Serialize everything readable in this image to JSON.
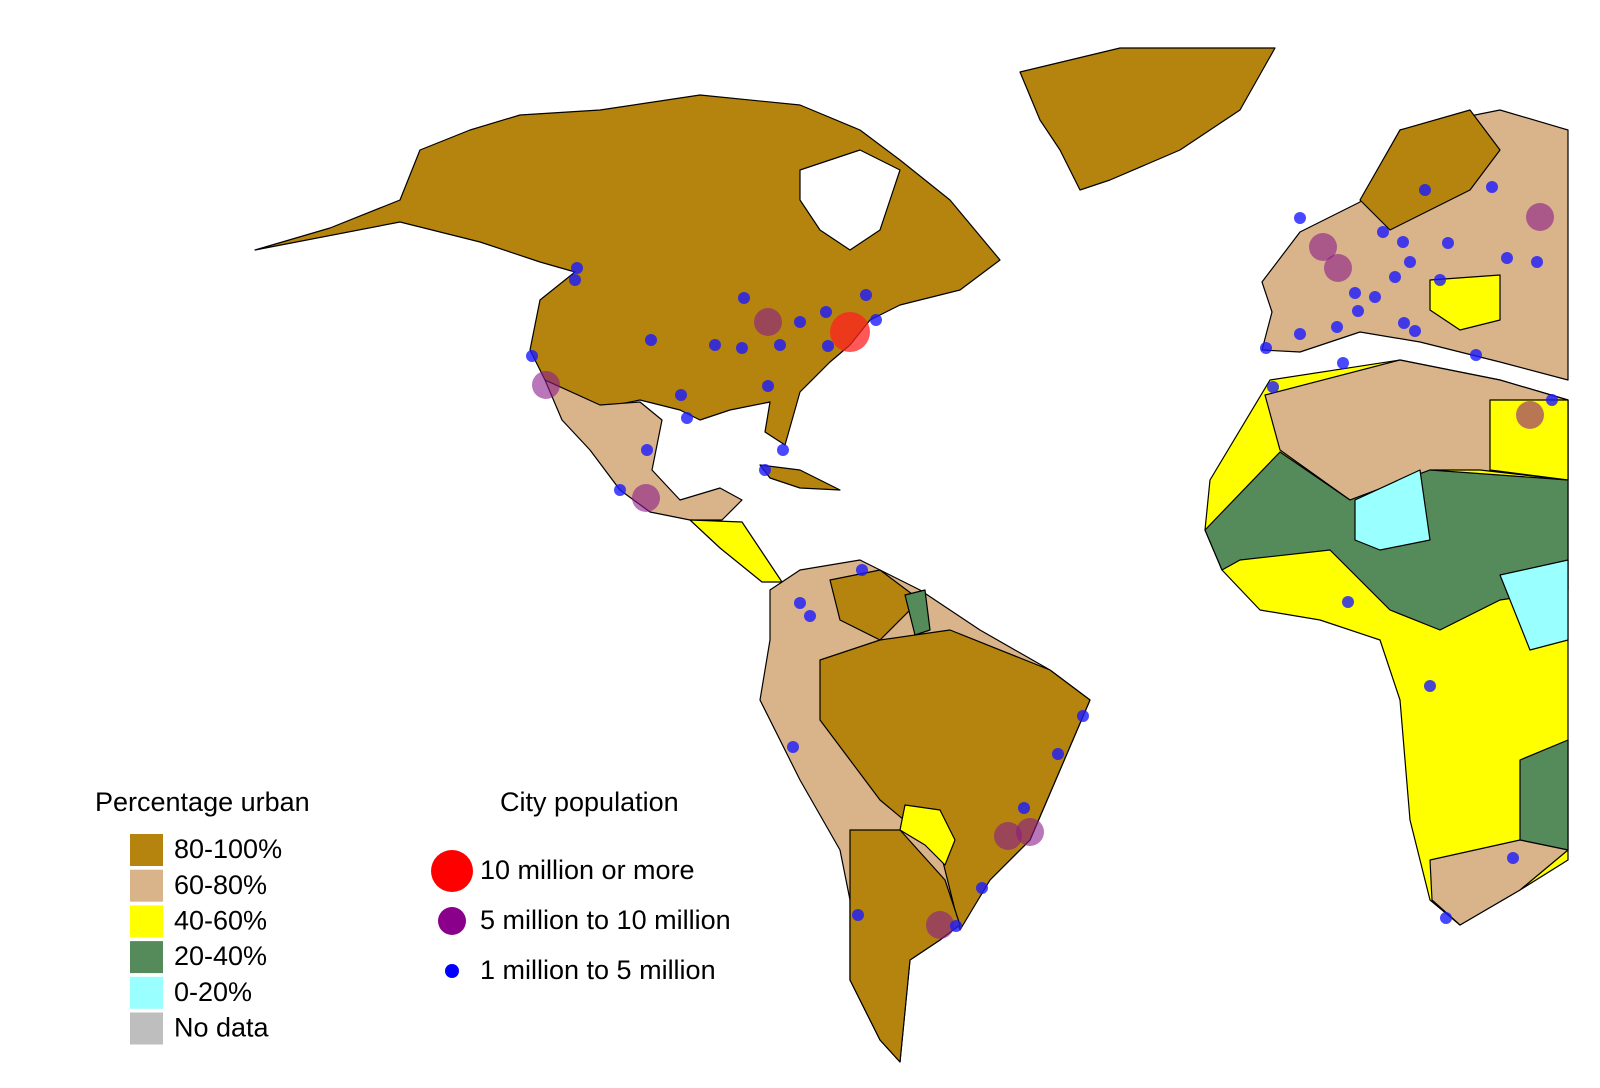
{
  "legends": {
    "urban": {
      "title": "Percentage urban",
      "items": [
        {
          "label": "80-100%",
          "color": "#b5840e"
        },
        {
          "label": "60-80%",
          "color": "#d9b48a"
        },
        {
          "label": "40-60%",
          "color": "#ffff00"
        },
        {
          "label": "20-40%",
          "color": "#558b5a"
        },
        {
          "label": "0-20%",
          "color": "#99ffff"
        },
        {
          "label": "No data",
          "color": "#bebebe"
        }
      ]
    },
    "city": {
      "title": "City population",
      "items": [
        {
          "label": "10 million or more",
          "color": "#ff0000"
        },
        {
          "label": "5 million to 10 million",
          "color": "#8b008b"
        },
        {
          "label": "1 million to 5 million",
          "color": "#0000ff"
        }
      ]
    }
  }
}
